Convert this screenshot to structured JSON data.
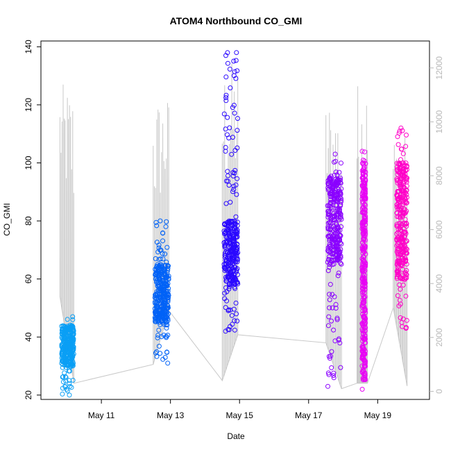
{
  "chart_data": {
    "type": "scatter",
    "title": "ATOM4 Northbound CO_GMI",
    "xlabel": "Date",
    "ylabel": "CO_GMI",
    "x_tick_labels": [
      "May 11",
      "May 13",
      "May 15",
      "May 17",
      "May 19"
    ],
    "x_ticks_days": [
      11,
      13,
      15,
      17,
      19
    ],
    "xlim_days": [
      9.25,
      20.5
    ],
    "ylim": [
      18.5,
      142
    ],
    "y_ticks": [
      20,
      40,
      60,
      80,
      100,
      120,
      140
    ],
    "y_right_lim": [
      -300,
      13000
    ],
    "y_right_ticks": [
      0,
      2000,
      4000,
      6000,
      8000,
      10000,
      12000
    ],
    "grid": false,
    "legend": "none",
    "marker": "open circle",
    "colors": {
      "flight1": "#0a9ff5",
      "flight2": "#0062f7",
      "flight3": "#2a08ff",
      "flight4": "#8a00ff",
      "flight5": "#e800f5",
      "flight6": "#ff00c8",
      "altitude": "#c8c8c8",
      "right_axis": "#b8b8b8"
    },
    "series": [
      {
        "color_key": "flight1",
        "day_start": 9.85,
        "day_end": 10.2,
        "ymin": 20,
        "ymax": 47,
        "core_low": 30,
        "core_high": 44
      },
      {
        "color_key": "flight2",
        "day_start": 12.55,
        "day_end": 12.95,
        "ymin": 31,
        "ymax": 80,
        "core_low": 45,
        "core_high": 65
      },
      {
        "color_key": "flight3",
        "day_start": 14.55,
        "day_end": 14.95,
        "ymin": 42,
        "ymax": 138,
        "core_low": 58,
        "core_high": 80
      },
      {
        "color_key": "flight4",
        "day_start": 17.55,
        "day_end": 17.95,
        "ymin": 23,
        "ymax": 103,
        "core_low": 65,
        "core_high": 95
      },
      {
        "color_key": "flight5",
        "day_start": 18.55,
        "day_end": 18.65,
        "ymin": 22,
        "ymax": 104,
        "core_low": 25,
        "core_high": 100
      },
      {
        "color_key": "flight6",
        "day_start": 19.55,
        "day_end": 19.85,
        "ymin": 43,
        "ymax": 112,
        "core_low": 60,
        "core_high": 100
      }
    ],
    "altitude_trace": {
      "description_free": true,
      "flights": [
        {
          "start": 9.8,
          "end": 10.2,
          "max_alt": 11400,
          "base_start": 3500,
          "base_end": 300
        },
        {
          "start": 12.5,
          "end": 12.95,
          "max_alt": 11000,
          "base_start": 1000,
          "base_end": 3000
        },
        {
          "start": 14.5,
          "end": 14.95,
          "max_alt": 12300,
          "base_start": 400,
          "base_end": 2100
        },
        {
          "start": 17.5,
          "end": 17.95,
          "max_alt": 11000,
          "base_start": 1800,
          "base_end": 100
        },
        {
          "start": 18.4,
          "end": 18.7,
          "max_alt": 11600,
          "base_start": 300,
          "base_end": 300
        },
        {
          "start": 19.45,
          "end": 19.85,
          "max_alt": 9600,
          "base_start": 3100,
          "base_end": 200
        }
      ]
    }
  }
}
